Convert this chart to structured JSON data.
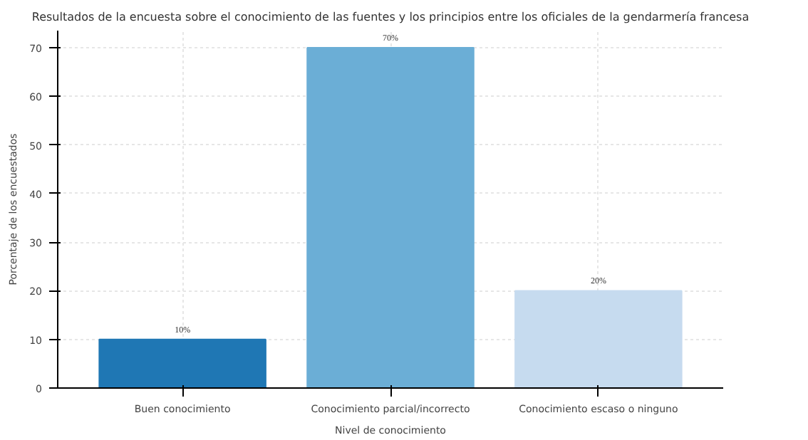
{
  "chart_data": {
    "type": "bar",
    "title": "Resultados de la encuesta sobre el conocimiento de las fuentes y los principios entre los oficiales de la gendarmería francesa",
    "xlabel": "Nivel de conocimiento",
    "ylabel": "Porcentaje de los encuestados",
    "categories": [
      "Buen conocimiento",
      "Conocimiento parcial/incorrecto",
      "Conocimiento escaso o ninguno"
    ],
    "values": [
      10,
      70,
      20
    ],
    "colors": [
      "#1f77b4",
      "#6baed6",
      "#c6dbef"
    ],
    "value_labels": [
      "10%",
      "70%",
      "20%"
    ],
    "ylim": [
      0,
      73.5
    ],
    "yticks": [
      0,
      10,
      20,
      30,
      40,
      50,
      60,
      70
    ],
    "grid": true
  }
}
